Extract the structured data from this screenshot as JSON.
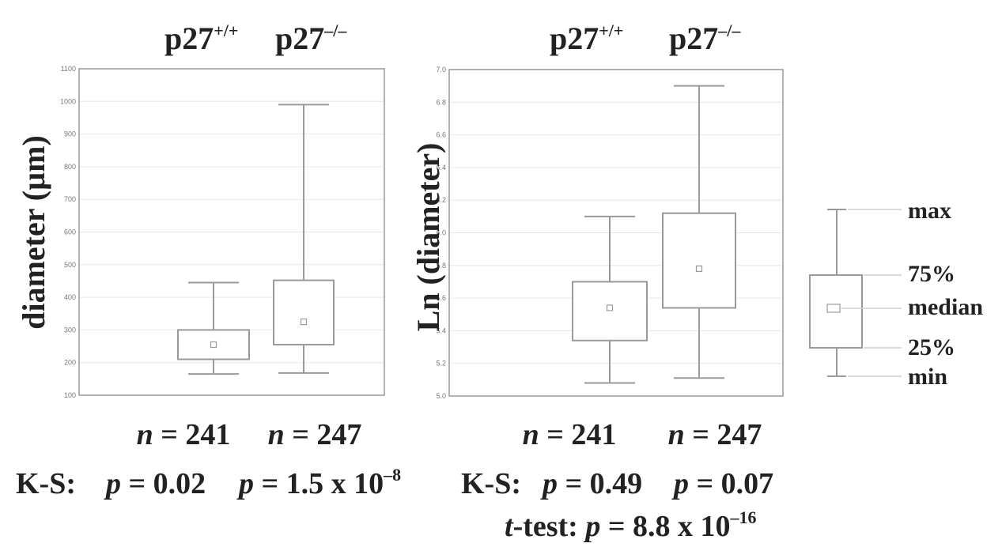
{
  "panel_left": {
    "title_a": {
      "base": "p27",
      "sup": "+/+"
    },
    "title_b": {
      "base": "p27",
      "sup": "–/–"
    },
    "n_a": {
      "var": "n",
      "eq": " = 241"
    },
    "n_b": {
      "var": "n",
      "eq": " = 247"
    },
    "ks": {
      "label": "K-S:",
      "a_var": "p",
      "a_val": " = 0.02",
      "b_var": "p",
      "b_val": " = 1.5 x 10",
      "b_sup": "–8"
    }
  },
  "panel_right": {
    "title_a": {
      "base": "p27",
      "sup": "+/+"
    },
    "title_b": {
      "base": "p27",
      "sup": "–/–"
    },
    "n_a": {
      "var": "n",
      "eq": " = 241"
    },
    "n_b": {
      "var": "n",
      "eq": " = 247"
    },
    "ks": {
      "label": "K-S:",
      "a_var": "p",
      "a_val": " = 0.49",
      "b_var": "p",
      "b_val": " = 0.07"
    },
    "ttest": {
      "label_var": "t",
      "label_rest": "-test: ",
      "p_var": "p",
      "val": " = 8.8 x 10",
      "sup": "–16"
    }
  },
  "legend": {
    "labels": [
      "max",
      "75%",
      "median",
      "25%",
      "min"
    ]
  },
  "chart_data": [
    {
      "type": "box",
      "ylabel": "diameter (µm)",
      "ylim": [
        100,
        1100
      ],
      "yticks": [
        100,
        200,
        300,
        400,
        500,
        600,
        700,
        800,
        900,
        1000,
        1100
      ],
      "grid": true,
      "series": [
        {
          "name": "p27+/+",
          "min": 165,
          "q1": 210,
          "median": 255,
          "q3": 300,
          "max": 445
        },
        {
          "name": "p27–/–",
          "min": 168,
          "q1": 255,
          "median": 325,
          "q3": 452,
          "max": 990
        }
      ]
    },
    {
      "type": "box",
      "ylabel": "Ln (diameter)",
      "ylim": [
        5.0,
        7.0
      ],
      "yticks": [
        "5.0",
        "5.2",
        "5.4",
        "5.6",
        "5.8",
        "6.0",
        "6.2",
        "6.4",
        "6.6",
        "6.8",
        "7.0"
      ],
      "grid": true,
      "series": [
        {
          "name": "p27+/+",
          "min": 5.08,
          "q1": 5.34,
          "median": 5.54,
          "q3": 5.7,
          "max": 6.1
        },
        {
          "name": "p27–/–",
          "min": 5.11,
          "q1": 5.54,
          "median": 5.78,
          "q3": 6.12,
          "max": 6.9
        }
      ]
    }
  ]
}
